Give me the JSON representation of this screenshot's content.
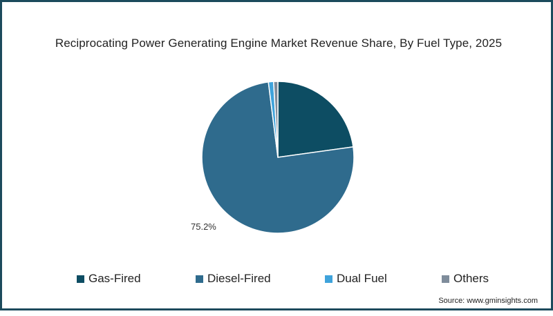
{
  "chart_data": {
    "type": "pie",
    "title": "Reciprocating Power Generating Engine Market Revenue Share, By Fuel Type, 2025",
    "categories": [
      "Gas-Fired",
      "Diesel-Fired",
      "Dual Fuel",
      "Others"
    ],
    "values": [
      22.8,
      75.2,
      1.1,
      0.9
    ],
    "unit": "%",
    "colors": [
      "#0d4d63",
      "#2f6b8d",
      "#3fa3db",
      "#7f8c9b"
    ],
    "data_labels": [
      {
        "category": "Diesel-Fired",
        "text": "75.2%"
      }
    ],
    "start_angle_deg": 0,
    "direction": "clockwise",
    "legend_position": "bottom"
  },
  "header": {
    "title": "Reciprocating Power Generating Engine Market Revenue Share, By Fuel Type, 2025"
  },
  "labels": {
    "diesel_label": "75.2%"
  },
  "legend": {
    "items": [
      {
        "label": "Gas-Fired",
        "color": "#0d4d63"
      },
      {
        "label": "Diesel-Fired",
        "color": "#2f6b8d"
      },
      {
        "label": "Dual Fuel",
        "color": "#3fa3db"
      },
      {
        "label": "Others",
        "color": "#7f8c9b"
      }
    ]
  },
  "footer": {
    "source": "Source: www.gminsights.com"
  },
  "theme": {
    "border_color": "#1c4a5c"
  }
}
